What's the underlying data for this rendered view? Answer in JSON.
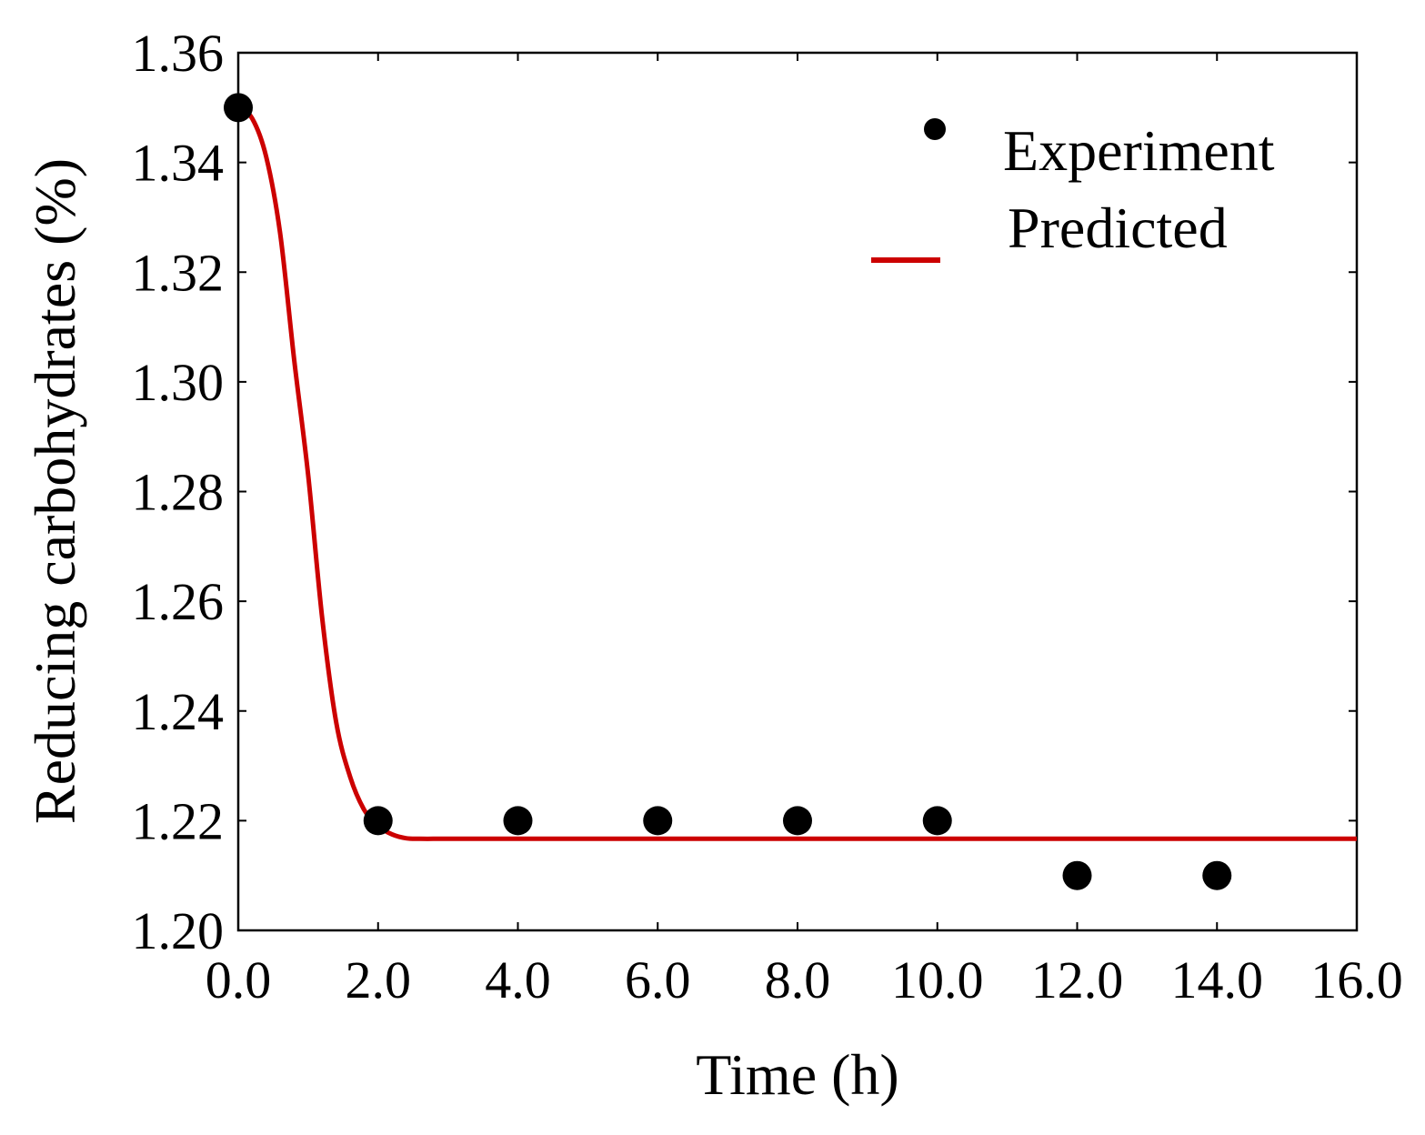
{
  "chart_data": {
    "type": "scatter",
    "title": "",
    "xlabel": "Time (h)",
    "ylabel": "Reducing carbohydrates (%)",
    "xlim": [
      0,
      16
    ],
    "ylim": [
      1.2,
      1.36
    ],
    "xticks": [
      0,
      2,
      4,
      6,
      8,
      10,
      12,
      14,
      16
    ],
    "xtick_labels": [
      "0.0",
      "2.0",
      "4.0",
      "6.0",
      "8.0",
      "10.0",
      "12.0",
      "14.0",
      "16.0"
    ],
    "yticks": [
      1.2,
      1.22,
      1.24,
      1.26,
      1.28,
      1.3,
      1.32,
      1.34,
      1.36
    ],
    "ytick_labels": [
      "1.20",
      "1.22",
      "1.24",
      "1.26",
      "1.28",
      "1.30",
      "1.32",
      "1.34",
      "1.36"
    ],
    "grid": false,
    "legend_position": "top-right",
    "series": [
      {
        "name": "Experiment",
        "kind": "scatter",
        "color": "#000000",
        "x": [
          0,
          2,
          4,
          6,
          8,
          10,
          12,
          14
        ],
        "y": [
          1.35,
          1.22,
          1.22,
          1.22,
          1.22,
          1.22,
          1.21,
          1.21
        ]
      },
      {
        "name": "Predicted",
        "kind": "line",
        "color": "#cc0000",
        "x": [
          0,
          0.2,
          0.4,
          0.6,
          0.8,
          1.0,
          1.2,
          1.4,
          1.6,
          1.8,
          2.0,
          2.2,
          2.4,
          2.6,
          3.0,
          4.0,
          6.0,
          8.0,
          10.0,
          12.0,
          14.0,
          16.0
        ],
        "y": [
          1.35,
          1.348,
          1.341,
          1.327,
          1.304,
          1.283,
          1.257,
          1.238,
          1.228,
          1.222,
          1.219,
          1.2175,
          1.2168,
          1.2167,
          1.2167,
          1.2167,
          1.2167,
          1.2167,
          1.2167,
          1.2167,
          1.2167,
          1.2167
        ]
      }
    ]
  }
}
